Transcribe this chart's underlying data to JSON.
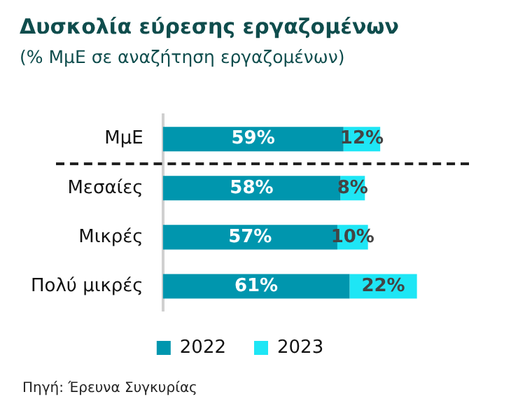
{
  "chart_data": {
    "type": "bar",
    "orientation": "horizontal",
    "stacked": true,
    "title": "Δυσκολία εύρεσης εργαζομένων",
    "subtitle": "(% ΜμΕ σε αναζήτηση εργαζομένων)",
    "categories": [
      "ΜμΕ",
      "Μεσαίες",
      "Μικρές",
      "Πολύ μικρές"
    ],
    "series": [
      {
        "name": "2022",
        "color": "#0096ae",
        "values": [
          59,
          58,
          57,
          61
        ],
        "value_labels": [
          "59%",
          "58%",
          "57%",
          "61%"
        ]
      },
      {
        "name": "2023",
        "color": "#1ee6f5",
        "values": [
          12,
          8,
          10,
          22
        ],
        "value_labels": [
          "12%",
          "8%",
          "10%",
          "22%"
        ]
      }
    ],
    "legend": "bottom",
    "grid": false,
    "annotations": [
      "Πηγή: Έρευνα Συγκυρίας"
    ]
  }
}
